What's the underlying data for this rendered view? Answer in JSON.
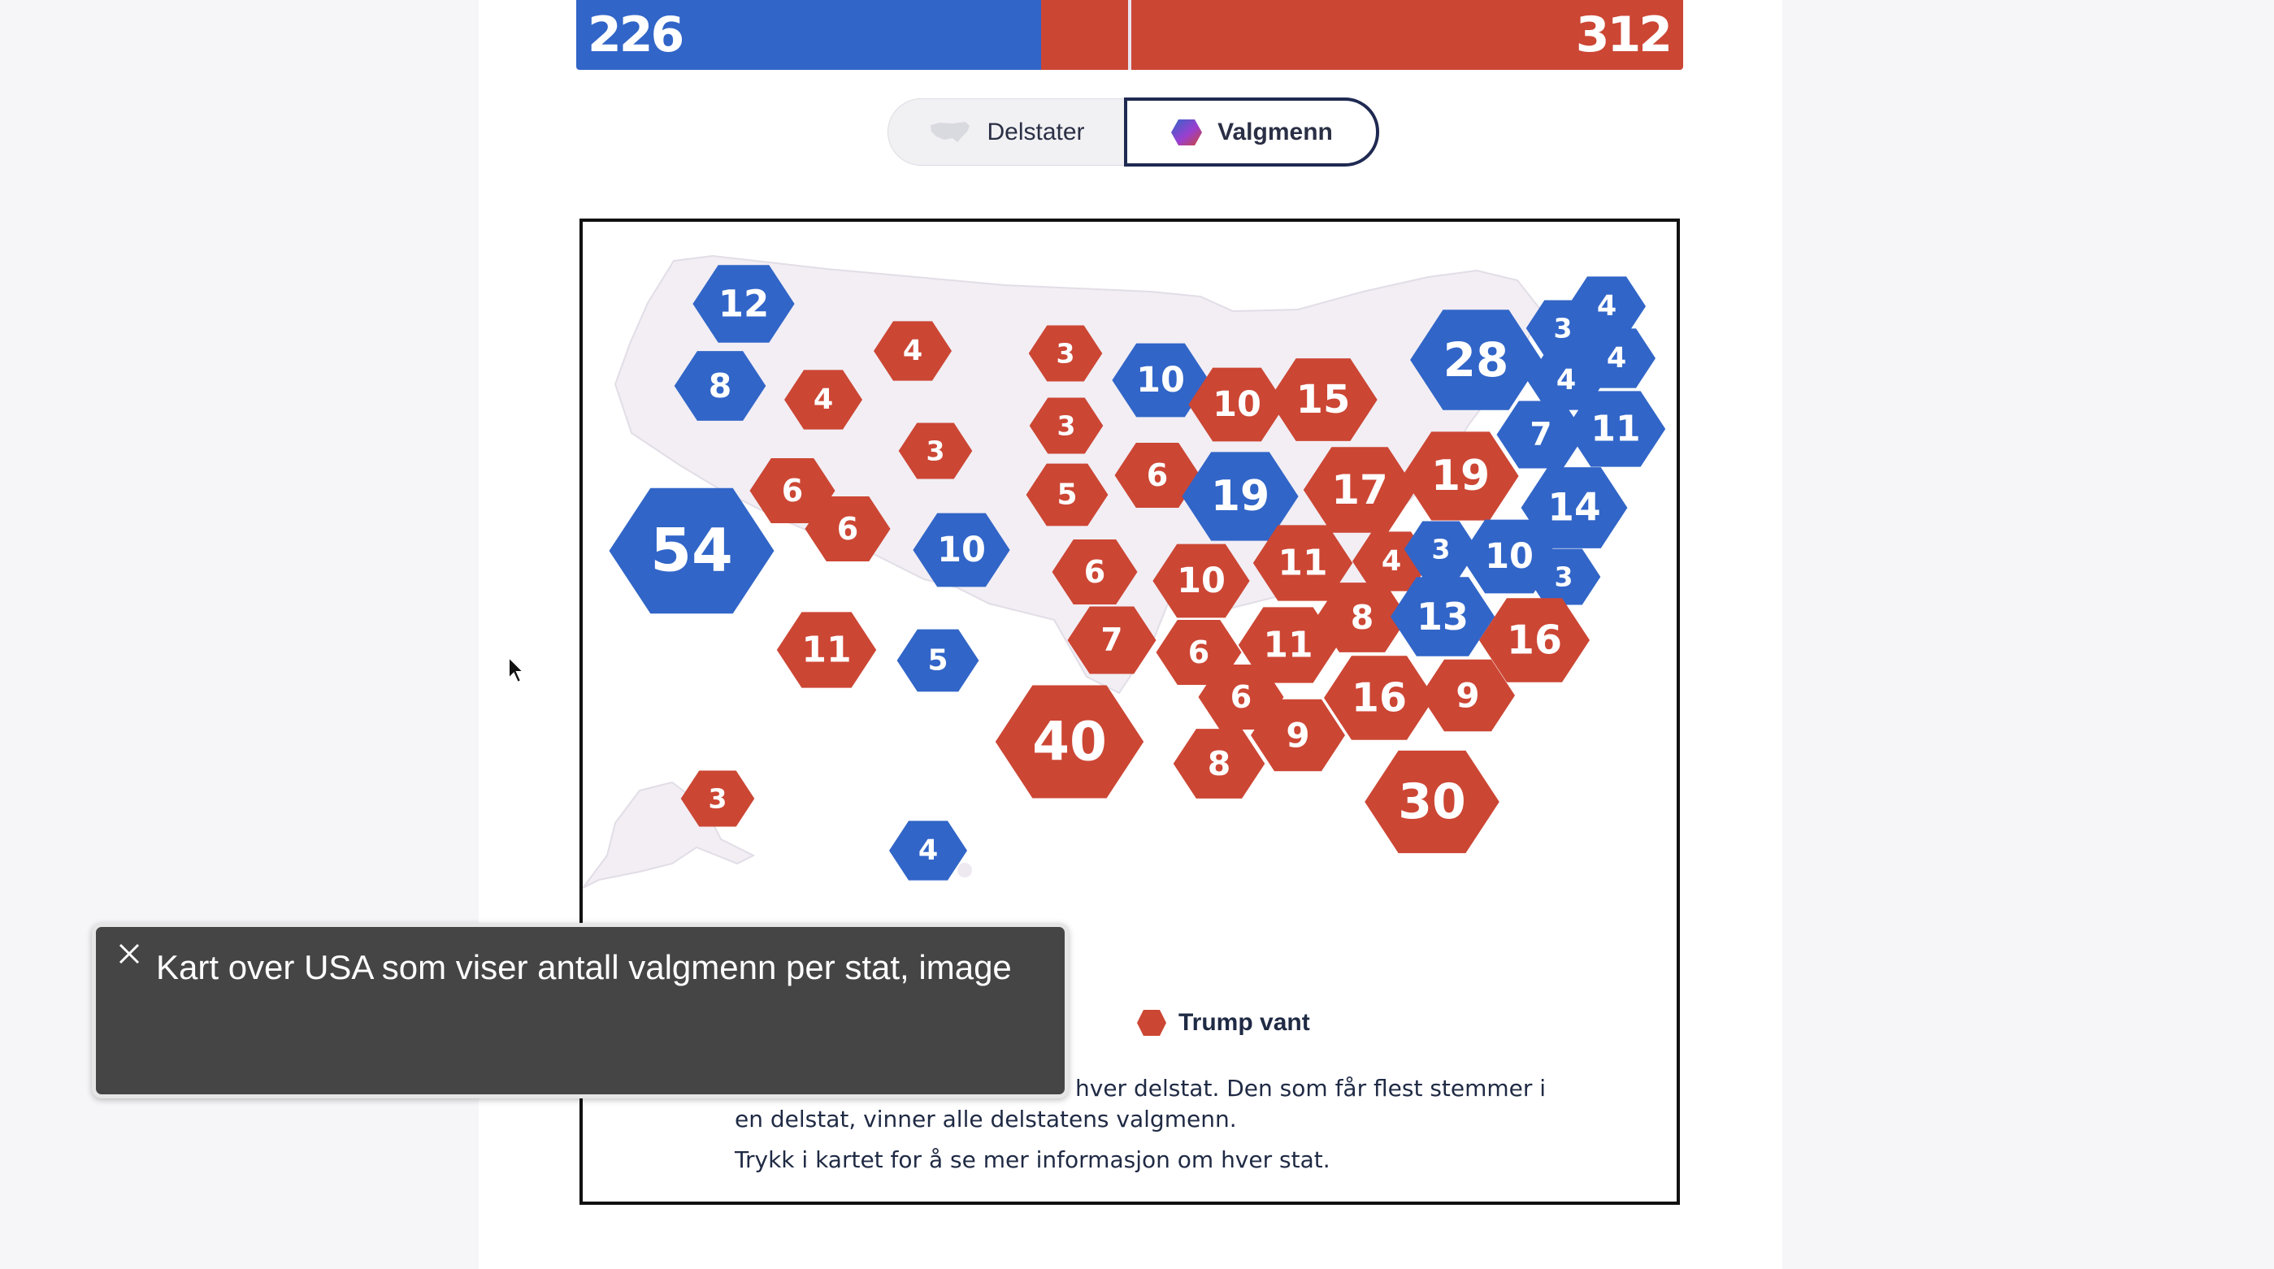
{
  "results": {
    "harris_votes": "226",
    "trump_votes": "312",
    "harris_share": 0.42,
    "colors": {
      "harris": "#3165c8",
      "trump": "#cc4634"
    }
  },
  "toggle": {
    "states_label": "Delstater",
    "electors_label": "Valgmenn",
    "selected": "Valgmenn"
  },
  "map": {
    "hexes": [
      {
        "state": "WA",
        "value": "12",
        "party": "D"
      },
      {
        "state": "OR",
        "value": "8",
        "party": "D"
      },
      {
        "state": "ID",
        "value": "4",
        "party": "R"
      },
      {
        "state": "MT",
        "value": "4",
        "party": "R"
      },
      {
        "state": "ND",
        "value": "3",
        "party": "R"
      },
      {
        "state": "SD",
        "value": "3",
        "party": "R"
      },
      {
        "state": "WY",
        "value": "3",
        "party": "R"
      },
      {
        "state": "MN",
        "value": "10",
        "party": "D"
      },
      {
        "state": "WI",
        "value": "10",
        "party": "R"
      },
      {
        "state": "MI",
        "value": "15",
        "party": "R"
      },
      {
        "state": "NY",
        "value": "28",
        "party": "D"
      },
      {
        "state": "VT",
        "value": "3",
        "party": "D"
      },
      {
        "state": "ME",
        "value": "4",
        "party": "D"
      },
      {
        "state": "NH",
        "value": "4",
        "party": "D"
      },
      {
        "state": "RI",
        "value": "4",
        "party": "D"
      },
      {
        "state": "CT",
        "value": "7",
        "party": "D"
      },
      {
        "state": "MA",
        "value": "11",
        "party": "D"
      },
      {
        "state": "NV",
        "value": "6",
        "party": "R"
      },
      {
        "state": "UT",
        "value": "6",
        "party": "R"
      },
      {
        "state": "NE",
        "value": "5",
        "party": "R"
      },
      {
        "state": "IA",
        "value": "6",
        "party": "R"
      },
      {
        "state": "IL",
        "value": "19",
        "party": "D"
      },
      {
        "state": "OH",
        "value": "17",
        "party": "R"
      },
      {
        "state": "PA",
        "value": "19",
        "party": "R"
      },
      {
        "state": "NJ",
        "value": "14",
        "party": "D"
      },
      {
        "state": "CA",
        "value": "54",
        "party": "D"
      },
      {
        "state": "CO",
        "value": "10",
        "party": "D"
      },
      {
        "state": "KS",
        "value": "6",
        "party": "R"
      },
      {
        "state": "MO",
        "value": "10",
        "party": "R"
      },
      {
        "state": "IN",
        "value": "11",
        "party": "R"
      },
      {
        "state": "WV",
        "value": "4",
        "party": "R"
      },
      {
        "state": "DE",
        "value": "3",
        "party": "D"
      },
      {
        "state": "MD",
        "value": "10",
        "party": "D"
      },
      {
        "state": "DC",
        "value": "3",
        "party": "D"
      },
      {
        "state": "AZ",
        "value": "11",
        "party": "R"
      },
      {
        "state": "NM",
        "value": "5",
        "party": "D"
      },
      {
        "state": "OK",
        "value": "7",
        "party": "R"
      },
      {
        "state": "AR",
        "value": "6",
        "party": "R"
      },
      {
        "state": "TN",
        "value": "11",
        "party": "R"
      },
      {
        "state": "KY",
        "value": "8",
        "party": "R"
      },
      {
        "state": "VA",
        "value": "13",
        "party": "D"
      },
      {
        "state": "NC",
        "value": "16",
        "party": "R"
      },
      {
        "state": "MS",
        "value": "6",
        "party": "R"
      },
      {
        "state": "AL",
        "value": "9",
        "party": "R"
      },
      {
        "state": "GA",
        "value": "16",
        "party": "R"
      },
      {
        "state": "SC",
        "value": "9",
        "party": "R"
      },
      {
        "state": "TX",
        "value": "40",
        "party": "R"
      },
      {
        "state": "LA",
        "value": "8",
        "party": "R"
      },
      {
        "state": "FL",
        "value": "30",
        "party": "R"
      },
      {
        "state": "AK",
        "value": "3",
        "party": "R"
      },
      {
        "state": "HI",
        "value": "4",
        "party": "D"
      }
    ]
  },
  "legend": {
    "trump_label": "Trump vant"
  },
  "notes": {
    "line1": "hver delstat. Den som får flest stemmer i",
    "line2": "en delstat, vinner alle delstatens valgmenn.",
    "line3": "Trykk i kartet for å se mer informasjon om hver stat."
  },
  "caption": {
    "text": "Kart over USA som viser antall valgmenn per stat, image"
  }
}
